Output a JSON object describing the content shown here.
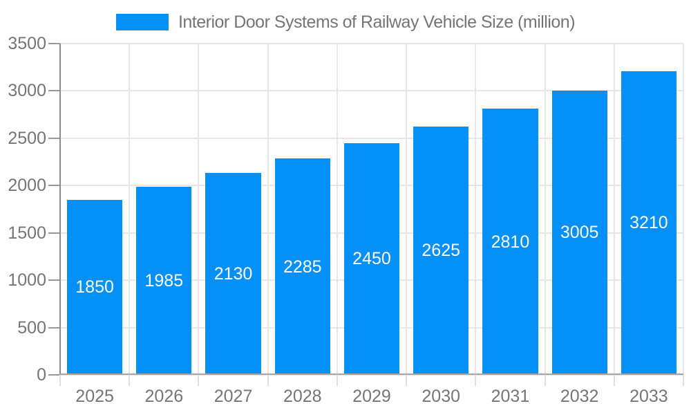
{
  "chart_data": {
    "type": "bar",
    "title": "Interior Door Systems of Railway Vehicle Size (million)",
    "categories": [
      "2025",
      "2026",
      "2027",
      "2028",
      "2029",
      "2030",
      "2031",
      "2032",
      "2033"
    ],
    "values": [
      1850,
      1985,
      2130,
      2285,
      2450,
      2625,
      2810,
      3005,
      3210
    ],
    "xlabel": "",
    "ylabel": "",
    "ylim": [
      0,
      3500
    ],
    "yticks": [
      0,
      500,
      1000,
      1500,
      2000,
      2500,
      3000,
      3500
    ],
    "grid": true,
    "legend_position": "top",
    "bar_color": "#0590f8",
    "value_label_color": "#ffffff",
    "axis_text_color": "#757575",
    "gridline_color": "#e6e6e6",
    "y_axis_line_color": "#8c8c8c",
    "x_axis_line_color": "#a6a6a6",
    "y_tick_color": "#999999",
    "x_tick_color": "#e0e0e0"
  }
}
